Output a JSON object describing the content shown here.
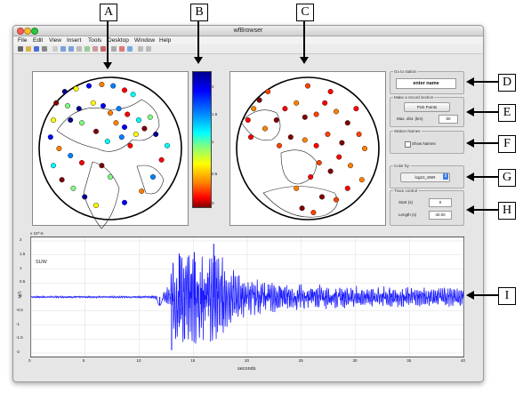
{
  "window": {
    "title": "wfBrowser"
  },
  "menu": [
    "File",
    "Edit",
    "View",
    "Insert",
    "Tools",
    "Desktop",
    "Window",
    "Help"
  ],
  "colorbar": {
    "ticks": [
      "2",
      "1.5",
      "1",
      "0.5",
      "0"
    ]
  },
  "controls": {
    "goto_station": {
      "title": "Go to station",
      "value": "enter name"
    },
    "record_section": {
      "title": "Make a record section",
      "button": "Pick Points",
      "max_dist_label": "Max. dist. (km)",
      "max_dist_value": "50"
    },
    "station_names": {
      "title": "Station Names",
      "checkbox_label": "Show Names"
    },
    "color_by": {
      "title": "Color by:",
      "value": "log10_SNR"
    },
    "trace_control": {
      "title": "Trace control",
      "start_label": "Start (s)",
      "start_value": "0",
      "length_label": "Length (s)",
      "length_value": "40.00"
    }
  },
  "callouts": [
    "A",
    "B",
    "C",
    "D",
    "E",
    "F",
    "G",
    "H",
    "I"
  ],
  "chart_data": {
    "type": "line",
    "title": "",
    "trace_label": "SUW",
    "xlabel": "seconds",
    "ylabel": "M/S",
    "y_exponent": "x 10^-6",
    "xlim": [
      0,
      40
    ],
    "ylim": [
      -2,
      2
    ],
    "x_ticks": [
      "0",
      "5",
      "10",
      "15",
      "20",
      "25",
      "30",
      "35",
      "40"
    ],
    "y_ticks": [
      "2",
      "1.5",
      "1",
      "0.5",
      "0",
      "-0.5",
      "-1",
      "-1.5",
      "-2"
    ],
    "grid": true,
    "color": "#1a1aff",
    "envelope": [
      [
        0,
        0.03
      ],
      [
        10,
        0.03
      ],
      [
        11.5,
        0.05
      ],
      [
        11.8,
        0.3
      ],
      [
        12.4,
        0.15
      ],
      [
        12.8,
        0.5
      ],
      [
        13.2,
        1.6
      ],
      [
        14,
        1.5
      ],
      [
        15.5,
        1.6
      ],
      [
        16.5,
        1.3
      ],
      [
        17,
        1.9
      ],
      [
        18,
        1.0
      ],
      [
        20,
        0.6
      ],
      [
        25,
        0.42
      ],
      [
        30,
        0.35
      ],
      [
        35,
        0.32
      ],
      [
        40,
        0.3
      ]
    ],
    "features": [
      {
        "x": 11.9,
        "y": -0.3
      },
      {
        "x": 13.0,
        "y": -1.9
      },
      {
        "x": 13.7,
        "y": 1.55
      },
      {
        "x": 16.9,
        "y": 1.9
      },
      {
        "x": 15.1,
        "y": 1.6
      },
      {
        "x": 14.2,
        "y": -1.5
      }
    ]
  },
  "maps": {
    "left": {
      "stations": [
        [
          0.18,
          0.1
        ],
        [
          0.26,
          0.08
        ],
        [
          0.35,
          0.06
        ],
        [
          0.44,
          0.05
        ],
        [
          0.52,
          0.06
        ],
        [
          0.6,
          0.09
        ],
        [
          0.66,
          0.12
        ],
        [
          0.12,
          0.18
        ],
        [
          0.2,
          0.2
        ],
        [
          0.28,
          0.22
        ],
        [
          0.38,
          0.18
        ],
        [
          0.45,
          0.2
        ],
        [
          0.5,
          0.25
        ],
        [
          0.56,
          0.22
        ],
        [
          0.62,
          0.26
        ],
        [
          0.7,
          0.3
        ],
        [
          0.74,
          0.36
        ],
        [
          0.78,
          0.28
        ],
        [
          0.82,
          0.4
        ],
        [
          0.68,
          0.4
        ],
        [
          0.6,
          0.35
        ],
        [
          0.54,
          0.32
        ],
        [
          0.58,
          0.42
        ],
        [
          0.64,
          0.48
        ],
        [
          0.48,
          0.45
        ],
        [
          0.4,
          0.38
        ],
        [
          0.3,
          0.32
        ],
        [
          0.22,
          0.3
        ],
        [
          0.1,
          0.3
        ],
        [
          0.08,
          0.42
        ],
        [
          0.14,
          0.5
        ],
        [
          0.22,
          0.55
        ],
        [
          0.3,
          0.6
        ],
        [
          0.1,
          0.62
        ],
        [
          0.16,
          0.72
        ],
        [
          0.24,
          0.78
        ],
        [
          0.32,
          0.84
        ],
        [
          0.4,
          0.9
        ],
        [
          0.6,
          0.88
        ],
        [
          0.72,
          0.8
        ],
        [
          0.8,
          0.7
        ],
        [
          0.86,
          0.58
        ],
        [
          0.9,
          0.48
        ],
        [
          0.44,
          0.62
        ],
        [
          0.5,
          0.7
        ]
      ]
    },
    "right": {
      "stations": [
        [
          0.08,
          0.3
        ],
        [
          0.12,
          0.22
        ],
        [
          0.16,
          0.16
        ],
        [
          0.22,
          0.1
        ],
        [
          0.34,
          0.22
        ],
        [
          0.42,
          0.18
        ],
        [
          0.48,
          0.28
        ],
        [
          0.56,
          0.26
        ],
        [
          0.62,
          0.18
        ],
        [
          0.7,
          0.24
        ],
        [
          0.78,
          0.32
        ],
        [
          0.86,
          0.4
        ],
        [
          0.84,
          0.22
        ],
        [
          0.9,
          0.5
        ],
        [
          0.74,
          0.46
        ],
        [
          0.64,
          0.4
        ],
        [
          0.56,
          0.48
        ],
        [
          0.48,
          0.44
        ],
        [
          0.38,
          0.42
        ],
        [
          0.3,
          0.48
        ],
        [
          0.72,
          0.56
        ],
        [
          0.8,
          0.62
        ],
        [
          0.66,
          0.66
        ],
        [
          0.58,
          0.6
        ],
        [
          0.52,
          0.7
        ],
        [
          0.42,
          0.78
        ],
        [
          0.6,
          0.84
        ],
        [
          0.7,
          0.86
        ],
        [
          0.78,
          0.78
        ],
        [
          0.88,
          0.72
        ],
        [
          0.46,
          0.92
        ],
        [
          0.54,
          0.95
        ],
        [
          0.1,
          0.42
        ],
        [
          0.2,
          0.36
        ],
        [
          0.28,
          0.3
        ],
        [
          0.5,
          0.06
        ],
        [
          0.66,
          0.1
        ]
      ]
    }
  }
}
